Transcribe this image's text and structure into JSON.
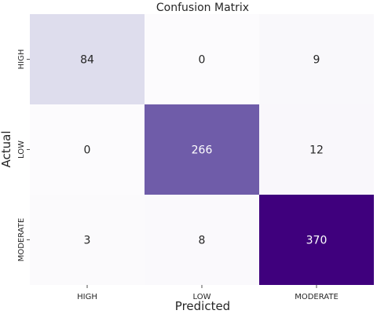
{
  "chart_data": {
    "type": "heatmap",
    "title": "Confusion Matrix",
    "xlabel": "Predicted",
    "ylabel": "Actual",
    "x_categories": [
      "HIGH",
      "LOW",
      "MODERATE"
    ],
    "y_categories": [
      "HIGH",
      "LOW",
      "MODERATE"
    ],
    "values": [
      [
        84,
        0,
        9
      ],
      [
        0,
        266,
        12
      ],
      [
        3,
        8,
        370
      ]
    ],
    "colormap": "Purples",
    "color_low": "#fcfbfd",
    "color_high": "#3f007d",
    "value_range": [
      0,
      370
    ],
    "grid": false,
    "colorbar": false
  }
}
